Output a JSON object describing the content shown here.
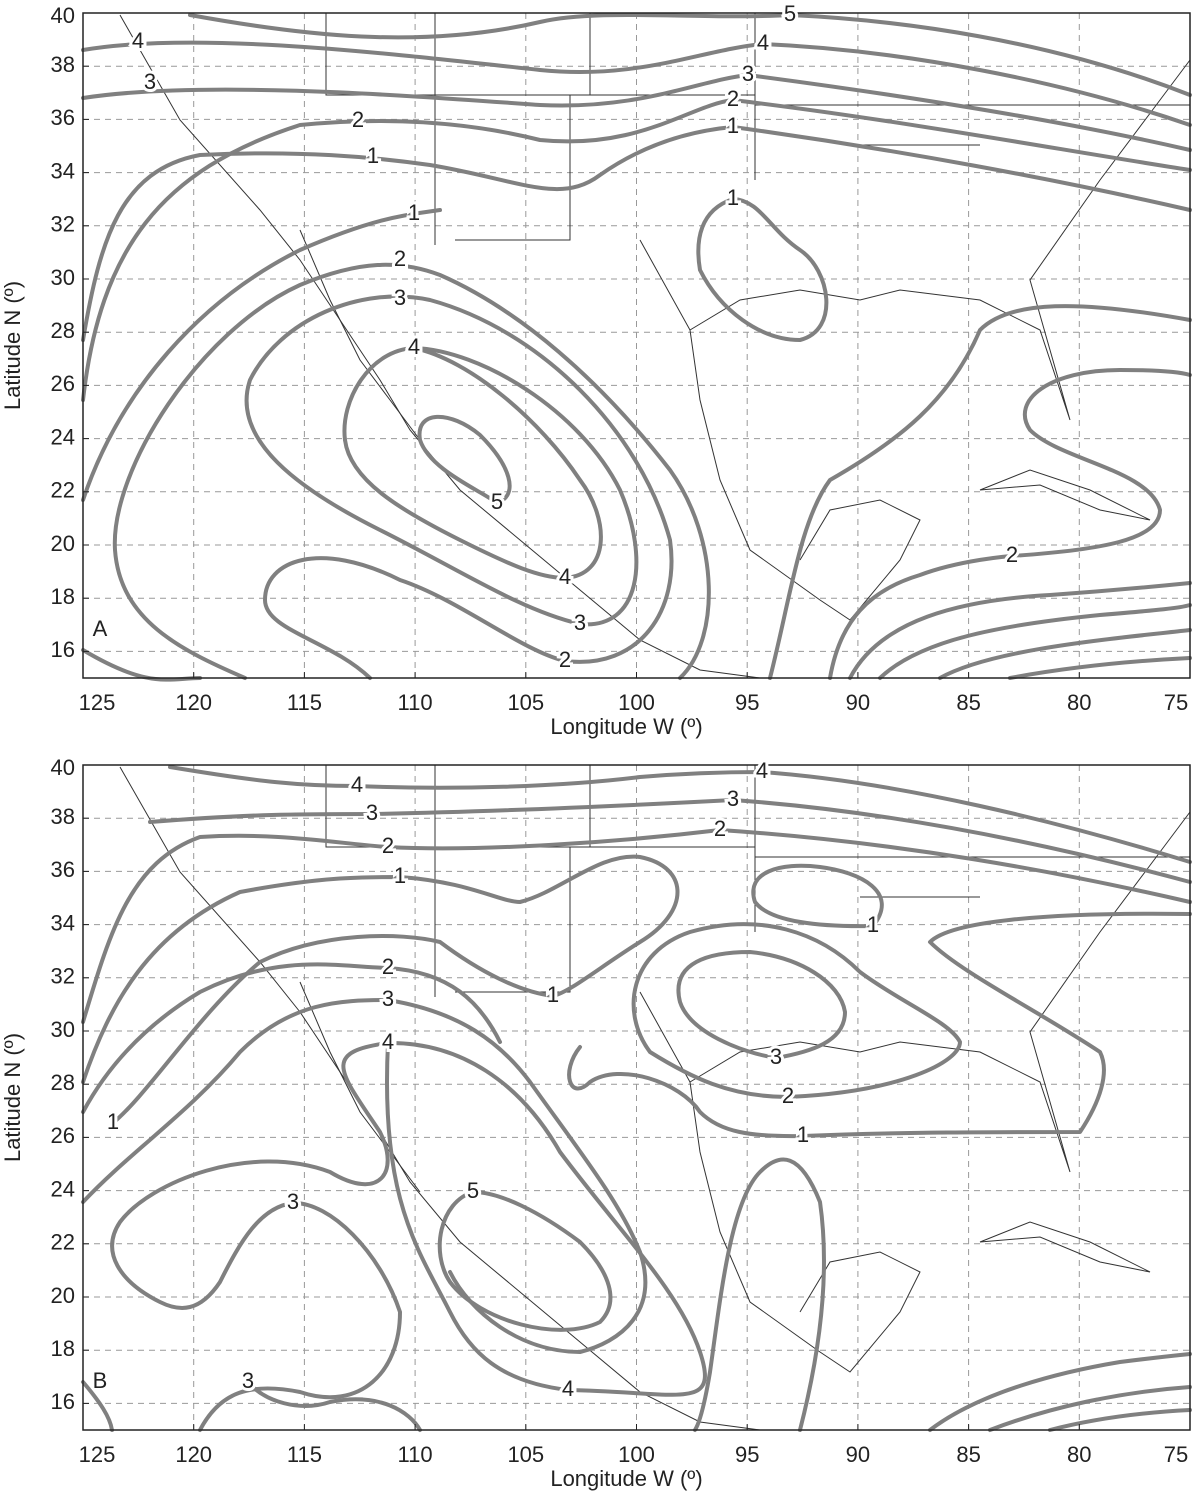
{
  "panels": [
    {
      "label": "A",
      "x_label": "Longitude W (º)",
      "y_label": "Latitude N (º)",
      "xlim": [
        125,
        75
      ],
      "ylim": [
        15,
        40
      ],
      "xticks": [
        125,
        120,
        115,
        110,
        105,
        100,
        95,
        90,
        85,
        80,
        75
      ],
      "yticks": [
        16,
        18,
        20,
        22,
        24,
        26,
        28,
        30,
        32,
        34,
        36,
        38,
        40
      ],
      "contour_labels": [
        5,
        4,
        3,
        2,
        1,
        4,
        3,
        2,
        1,
        1,
        2,
        3,
        4,
        5,
        4,
        3,
        2,
        1,
        2
      ]
    },
    {
      "label": "B",
      "x_label": "Longitude W (º)",
      "y_label": "Latitude N (º)",
      "xlim": [
        125,
        75
      ],
      "ylim": [
        15,
        40
      ],
      "xticks": [
        125,
        120,
        115,
        110,
        105,
        100,
        95,
        90,
        85,
        80,
        75
      ],
      "yticks": [
        16,
        18,
        20,
        22,
        24,
        26,
        28,
        30,
        32,
        34,
        36,
        38,
        40
      ],
      "contour_labels": [
        4,
        3,
        2,
        4,
        3,
        2,
        1,
        1,
        2,
        3,
        1,
        4,
        3,
        2,
        1,
        1,
        5,
        3,
        4,
        3
      ]
    }
  ]
}
